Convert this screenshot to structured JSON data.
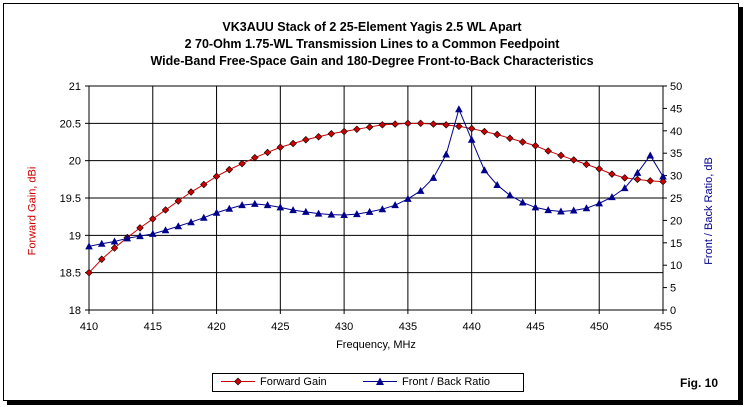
{
  "titles": {
    "line1": "VK3AUU Stack of 2 25-Element Yagis 2.5 WL Apart",
    "line2": "2 70-Ohm 1.75-WL Transmission Lines to a Common Feedpoint",
    "line3": "Wide-Band Free-Space Gain and 180-Degree Front-to-Back Characteristics"
  },
  "figure_label": "Fig. 10",
  "colors": {
    "gain": "#cc0000",
    "fb": "#00008b",
    "gain_label": "#cc0000",
    "fb_label": "#00008b"
  },
  "chart_data": {
    "type": "line",
    "title": "VK3AUU Stack of 2 25-Element Yagis 2.5 WL Apart",
    "xlabel": "Frequency, MHz",
    "ylabel_left": "Forward Gain,  dBi",
    "ylabel_right": "Front / Back Ratio,  dB",
    "xlim": [
      410,
      455
    ],
    "ylim_left": [
      18,
      21
    ],
    "ylim_right": [
      0,
      50
    ],
    "x_ticks": [
      "410",
      "415",
      "420",
      "425",
      "430",
      "435",
      "440",
      "445",
      "450",
      "455"
    ],
    "y_left_ticks": [
      "18",
      "18.5",
      "19",
      "19.5",
      "20",
      "20.5",
      "21"
    ],
    "y_right_ticks": [
      "0",
      "5",
      "10",
      "15",
      "20",
      "25",
      "30",
      "35",
      "40",
      "45",
      "50"
    ],
    "grid": true,
    "legend_position": "bottom",
    "x": [
      410,
      411,
      412,
      413,
      414,
      415,
      416,
      417,
      418,
      419,
      420,
      421,
      422,
      423,
      424,
      425,
      426,
      427,
      428,
      429,
      430,
      431,
      432,
      433,
      434,
      435,
      436,
      437,
      438,
      439,
      440,
      441,
      442,
      443,
      444,
      445,
      446,
      447,
      448,
      449,
      450,
      451,
      452,
      453,
      454,
      455
    ],
    "series": [
      {
        "name": "Forward Gain",
        "axis": "left",
        "marker": "diamond",
        "values": [
          18.5,
          18.68,
          18.83,
          18.97,
          19.1,
          19.22,
          19.34,
          19.46,
          19.58,
          19.68,
          19.79,
          19.88,
          19.96,
          20.04,
          20.11,
          20.18,
          20.23,
          20.28,
          20.32,
          20.36,
          20.39,
          20.42,
          20.45,
          20.48,
          20.49,
          20.5,
          20.5,
          20.49,
          20.48,
          20.46,
          20.43,
          20.39,
          20.35,
          20.3,
          20.25,
          20.2,
          20.13,
          20.07,
          20.01,
          19.95,
          19.89,
          19.82,
          19.77,
          19.75,
          19.73,
          19.72
        ]
      },
      {
        "name": "Front / Back Ratio",
        "axis": "right",
        "marker": "triangle",
        "values": [
          14.2,
          14.8,
          15.3,
          16.0,
          16.5,
          17.0,
          17.8,
          18.7,
          19.6,
          20.6,
          21.7,
          22.6,
          23.4,
          23.7,
          23.4,
          22.9,
          22.3,
          21.9,
          21.5,
          21.3,
          21.2,
          21.4,
          21.9,
          22.5,
          23.4,
          24.8,
          26.6,
          29.5,
          34.7,
          44.8,
          38.0,
          31.2,
          27.9,
          25.6,
          24.0,
          22.9,
          22.3,
          22.0,
          22.2,
          22.7,
          23.8,
          25.2,
          27.2,
          30.6,
          34.5,
          29.8
        ]
      }
    ]
  }
}
